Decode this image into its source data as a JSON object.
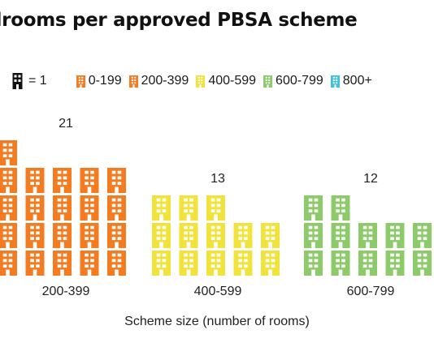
{
  "title": "drooms per approved PBSA scheme",
  "legend": {
    "key_label": "= 1",
    "items": [
      {
        "label": "0-199",
        "color": "#F47B20"
      },
      {
        "label": "200-399",
        "color": "#F47B20"
      },
      {
        "label": "400-599",
        "color": "#F2E33C"
      },
      {
        "label": "600-799",
        "color": "#8DCB6A"
      },
      {
        "label": "800+",
        "color": "#3FC0DC"
      }
    ]
  },
  "chart_data": {
    "type": "pictogram",
    "unit": "= 1",
    "xlabel": "Scheme size (number of rooms)",
    "categories": [
      "200-399",
      "400-599",
      "600-799"
    ],
    "values": [
      21,
      13,
      12
    ],
    "colors": [
      "#F47B20",
      "#F2E33C",
      "#8DCB6A"
    ]
  }
}
